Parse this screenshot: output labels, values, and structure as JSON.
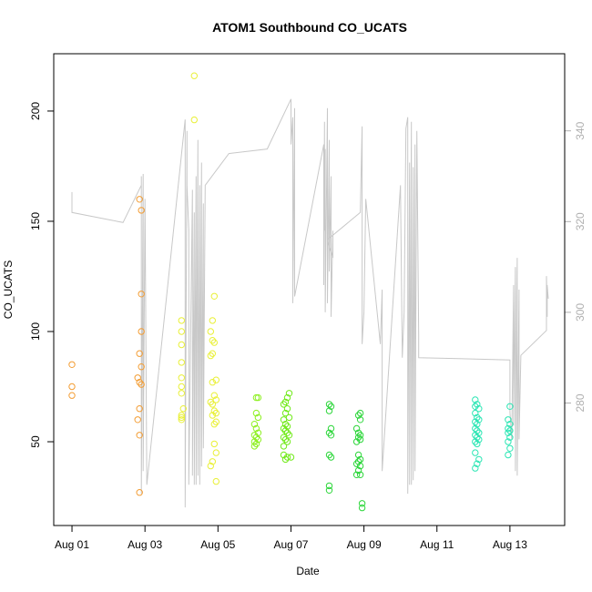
{
  "chart_data": {
    "type": "scatter",
    "title": "ATOM1 Southbound CO_UCATS",
    "xlabel": "Date",
    "ylabel": "CO_UCATS",
    "x_unit": "days since Aug 01",
    "xlim": [
      -0.5,
      13.5
    ],
    "ylim": [
      12,
      226
    ],
    "x_ticks": [
      {
        "value": 0,
        "label": "Aug 01"
      },
      {
        "value": 2,
        "label": "Aug 03"
      },
      {
        "value": 4,
        "label": "Aug 05"
      },
      {
        "value": 6,
        "label": "Aug 07"
      },
      {
        "value": 8,
        "label": "Aug 09"
      },
      {
        "value": 10,
        "label": "Aug 11"
      },
      {
        "value": 12,
        "label": "Aug 13"
      }
    ],
    "y_ticks": [
      {
        "value": 50,
        "label": "50"
      },
      {
        "value": 100,
        "label": "100"
      },
      {
        "value": 150,
        "label": "150"
      },
      {
        "value": 200,
        "label": "200"
      }
    ],
    "secondary_axis": {
      "description": "grey altitude trace (right axis)",
      "color": "#c8c8c8",
      "ylim": [
        253,
        357
      ],
      "ticks": [
        {
          "value": 280,
          "label": "280"
        },
        {
          "value": 300,
          "label": "300"
        },
        {
          "value": 320,
          "label": "320"
        },
        {
          "value": 340,
          "label": "340"
        }
      ],
      "line": [
        [
          0.0,
          326.5
        ],
        [
          0.0,
          322.0
        ],
        [
          1.4,
          319.8
        ],
        [
          1.9,
          328.0
        ],
        [
          1.9,
          330.0
        ],
        [
          1.9,
          260.0
        ],
        [
          1.95,
          330.5
        ],
        [
          1.95,
          265.0
        ],
        [
          2.0,
          325.0
        ],
        [
          2.05,
          262.0
        ],
        [
          3.1,
          342.5
        ],
        [
          3.1,
          257.0
        ],
        [
          3.15,
          340.0
        ],
        [
          3.15,
          328.0
        ],
        [
          3.2,
          318.0
        ],
        [
          3.2,
          262.0
        ],
        [
          3.3,
          327.0
        ],
        [
          3.3,
          264.0
        ],
        [
          3.35,
          322.0
        ],
        [
          3.35,
          262.0
        ],
        [
          3.4,
          330.0
        ],
        [
          3.4,
          262.0
        ],
        [
          3.45,
          338.0
        ],
        [
          3.45,
          264.0
        ],
        [
          3.5,
          328.0
        ],
        [
          3.5,
          262.0
        ],
        [
          3.55,
          333.0
        ],
        [
          3.55,
          266.0
        ],
        [
          3.6,
          324.0
        ],
        [
          3.6,
          270.0
        ],
        [
          3.65,
          328.0
        ],
        [
          4.3,
          335.0
        ],
        [
          5.35,
          336.0
        ],
        [
          6.0,
          347.0
        ],
        [
          6.0,
          337.0
        ],
        [
          6.05,
          343.0
        ],
        [
          6.05,
          302.0
        ],
        [
          6.1,
          345.0
        ],
        [
          6.1,
          303.5
        ],
        [
          6.9,
          337.0
        ],
        [
          6.9,
          306.0
        ],
        [
          6.92,
          342.0
        ],
        [
          6.92,
          318.0
        ],
        [
          6.94,
          336.0
        ],
        [
          6.94,
          300.0
        ],
        [
          7.0,
          345.0
        ],
        [
          7.0,
          302.0
        ],
        [
          7.05,
          338.0
        ],
        [
          7.05,
          309.0
        ],
        [
          7.1,
          330.0
        ],
        [
          7.1,
          299.0
        ],
        [
          7.15,
          318.0
        ],
        [
          7.15,
          312.0
        ],
        [
          7.0,
          316.0
        ],
        [
          7.9,
          322.0
        ],
        [
          7.95,
          341.0
        ],
        [
          7.95,
          293.0
        ],
        [
          8.0,
          300.0
        ],
        [
          8.05,
          325.0
        ],
        [
          8.45,
          293.0
        ],
        [
          8.5,
          305.0
        ],
        [
          8.5,
          265.0
        ],
        [
          9.0,
          328.0
        ],
        [
          9.05,
          290.0
        ],
        [
          9.1,
          300.0
        ],
        [
          9.15,
          340.5
        ],
        [
          9.2,
          343.0
        ],
        [
          9.2,
          260.0
        ],
        [
          9.25,
          333.0
        ],
        [
          9.25,
          262.0
        ],
        [
          9.3,
          342.0
        ],
        [
          9.3,
          262.0
        ],
        [
          9.35,
          332.0
        ],
        [
          9.35,
          263.0
        ],
        [
          9.4,
          337.0
        ],
        [
          9.4,
          265.0
        ],
        [
          9.45,
          340.0
        ],
        [
          9.5,
          295.0
        ],
        [
          9.5,
          290.0
        ],
        [
          12.0,
          289.5
        ],
        [
          12.0,
          278.0
        ],
        [
          12.05,
          272.0
        ],
        [
          12.1,
          306.0
        ],
        [
          12.1,
          275.0
        ],
        [
          12.15,
          310.0
        ],
        [
          12.15,
          265.0
        ],
        [
          12.2,
          312.0
        ],
        [
          12.2,
          264.0
        ],
        [
          12.25,
          305.0
        ],
        [
          12.25,
          272.0
        ],
        [
          12.3,
          290.5
        ],
        [
          13.0,
          296.0
        ],
        [
          13.0,
          308.0
        ],
        [
          13.02,
          299.0
        ],
        [
          13.02,
          306.0
        ],
        [
          13.05,
          303.0
        ]
      ]
    },
    "points": [
      {
        "x": 0.0,
        "y": 85,
        "color": "#f39c32"
      },
      {
        "x": 0.0,
        "y": 75,
        "color": "#f39c32"
      },
      {
        "x": 0.0,
        "y": 71,
        "color": "#f39c32"
      },
      {
        "x": 1.85,
        "y": 160,
        "color": "#f39c32"
      },
      {
        "x": 1.9,
        "y": 155,
        "color": "#f39c32"
      },
      {
        "x": 1.9,
        "y": 117,
        "color": "#f39c32"
      },
      {
        "x": 1.9,
        "y": 100,
        "color": "#f39c32"
      },
      {
        "x": 1.85,
        "y": 90,
        "color": "#f39c32"
      },
      {
        "x": 1.9,
        "y": 84,
        "color": "#f39c32"
      },
      {
        "x": 1.8,
        "y": 79,
        "color": "#f39c32"
      },
      {
        "x": 1.85,
        "y": 77,
        "color": "#f39c32"
      },
      {
        "x": 1.9,
        "y": 76,
        "color": "#f39c32"
      },
      {
        "x": 1.85,
        "y": 65,
        "color": "#f39c32"
      },
      {
        "x": 1.8,
        "y": 60,
        "color": "#f39c32"
      },
      {
        "x": 1.85,
        "y": 53,
        "color": "#f39c32"
      },
      {
        "x": 1.85,
        "y": 27,
        "color": "#f39c32"
      },
      {
        "x": 3.35,
        "y": 216,
        "color": "#e9f036"
      },
      {
        "x": 3.35,
        "y": 196,
        "color": "#e9f036"
      },
      {
        "x": 3.0,
        "y": 105,
        "color": "#e9f036"
      },
      {
        "x": 3.0,
        "y": 100,
        "color": "#e9f036"
      },
      {
        "x": 3.0,
        "y": 94,
        "color": "#e9f036"
      },
      {
        "x": 3.0,
        "y": 86,
        "color": "#e9f036"
      },
      {
        "x": 3.0,
        "y": 79,
        "color": "#e9f036"
      },
      {
        "x": 3.0,
        "y": 75,
        "color": "#e9f036"
      },
      {
        "x": 3.0,
        "y": 72,
        "color": "#e9f036"
      },
      {
        "x": 3.05,
        "y": 65,
        "color": "#e9f036"
      },
      {
        "x": 3.0,
        "y": 62,
        "color": "#e9f036"
      },
      {
        "x": 3.0,
        "y": 61,
        "color": "#e9f036"
      },
      {
        "x": 3.0,
        "y": 60,
        "color": "#e9f036"
      },
      {
        "x": 3.9,
        "y": 116,
        "color": "#e9f036"
      },
      {
        "x": 3.85,
        "y": 105,
        "color": "#e9f036"
      },
      {
        "x": 3.8,
        "y": 100,
        "color": "#e9f036"
      },
      {
        "x": 3.85,
        "y": 96,
        "color": "#e9f036"
      },
      {
        "x": 3.9,
        "y": 95,
        "color": "#e9f036"
      },
      {
        "x": 3.85,
        "y": 90,
        "color": "#e9f036"
      },
      {
        "x": 3.8,
        "y": 89,
        "color": "#e9f036"
      },
      {
        "x": 3.95,
        "y": 78,
        "color": "#e9f036"
      },
      {
        "x": 3.85,
        "y": 77,
        "color": "#e9f036"
      },
      {
        "x": 3.9,
        "y": 71,
        "color": "#e9f036"
      },
      {
        "x": 3.95,
        "y": 69,
        "color": "#e9f036"
      },
      {
        "x": 3.8,
        "y": 68,
        "color": "#e9f036"
      },
      {
        "x": 3.85,
        "y": 67,
        "color": "#e9f036"
      },
      {
        "x": 3.9,
        "y": 64,
        "color": "#e9f036"
      },
      {
        "x": 3.95,
        "y": 63,
        "color": "#e9f036"
      },
      {
        "x": 3.85,
        "y": 62,
        "color": "#e9f036"
      },
      {
        "x": 3.95,
        "y": 59,
        "color": "#e9f036"
      },
      {
        "x": 3.9,
        "y": 58,
        "color": "#e9f036"
      },
      {
        "x": 3.9,
        "y": 49,
        "color": "#e9f036"
      },
      {
        "x": 3.95,
        "y": 45,
        "color": "#e9f036"
      },
      {
        "x": 3.85,
        "y": 41,
        "color": "#e9f036"
      },
      {
        "x": 3.8,
        "y": 39,
        "color": "#e9f036"
      },
      {
        "x": 3.95,
        "y": 32,
        "color": "#e9f036"
      },
      {
        "x": 5.05,
        "y": 70,
        "color": "#8ef022"
      },
      {
        "x": 5.1,
        "y": 70,
        "color": "#8ef022"
      },
      {
        "x": 5.05,
        "y": 63,
        "color": "#8ef022"
      },
      {
        "x": 5.1,
        "y": 61,
        "color": "#8ef022"
      },
      {
        "x": 5.0,
        "y": 58,
        "color": "#8ef022"
      },
      {
        "x": 5.05,
        "y": 56,
        "color": "#8ef022"
      },
      {
        "x": 5.1,
        "y": 54,
        "color": "#8ef022"
      },
      {
        "x": 5.0,
        "y": 53,
        "color": "#8ef022"
      },
      {
        "x": 5.05,
        "y": 52,
        "color": "#8ef022"
      },
      {
        "x": 5.1,
        "y": 51,
        "color": "#8ef022"
      },
      {
        "x": 5.0,
        "y": 50,
        "color": "#8ef022"
      },
      {
        "x": 5.05,
        "y": 49,
        "color": "#8ef022"
      },
      {
        "x": 5.0,
        "y": 48,
        "color": "#8ef022"
      },
      {
        "x": 5.95,
        "y": 72,
        "color": "#71ea1a"
      },
      {
        "x": 5.9,
        "y": 70,
        "color": "#71ea1a"
      },
      {
        "x": 5.85,
        "y": 68,
        "color": "#71ea1a"
      },
      {
        "x": 5.8,
        "y": 67,
        "color": "#71ea1a"
      },
      {
        "x": 5.9,
        "y": 65,
        "color": "#71ea1a"
      },
      {
        "x": 5.85,
        "y": 63,
        "color": "#71ea1a"
      },
      {
        "x": 5.95,
        "y": 61,
        "color": "#71ea1a"
      },
      {
        "x": 5.8,
        "y": 60,
        "color": "#71ea1a"
      },
      {
        "x": 5.85,
        "y": 58,
        "color": "#71ea1a"
      },
      {
        "x": 5.9,
        "y": 57,
        "color": "#71ea1a"
      },
      {
        "x": 5.8,
        "y": 56,
        "color": "#71ea1a"
      },
      {
        "x": 5.85,
        "y": 55,
        "color": "#71ea1a"
      },
      {
        "x": 5.9,
        "y": 54,
        "color": "#71ea1a"
      },
      {
        "x": 5.95,
        "y": 53,
        "color": "#71ea1a"
      },
      {
        "x": 5.8,
        "y": 52,
        "color": "#71ea1a"
      },
      {
        "x": 5.85,
        "y": 51,
        "color": "#71ea1a"
      },
      {
        "x": 5.9,
        "y": 50,
        "color": "#71ea1a"
      },
      {
        "x": 5.8,
        "y": 48,
        "color": "#71ea1a"
      },
      {
        "x": 5.8,
        "y": 44,
        "color": "#71ea1a"
      },
      {
        "x": 5.9,
        "y": 43,
        "color": "#71ea1a"
      },
      {
        "x": 6.0,
        "y": 43,
        "color": "#71ea1a"
      },
      {
        "x": 5.85,
        "y": 42,
        "color": "#71ea1a"
      },
      {
        "x": 7.05,
        "y": 67,
        "color": "#2cd63a"
      },
      {
        "x": 7.1,
        "y": 66,
        "color": "#2cd63a"
      },
      {
        "x": 7.05,
        "y": 64,
        "color": "#2cd63a"
      },
      {
        "x": 7.1,
        "y": 56,
        "color": "#2cd63a"
      },
      {
        "x": 7.05,
        "y": 54,
        "color": "#2cd63a"
      },
      {
        "x": 7.1,
        "y": 53,
        "color": "#2cd63a"
      },
      {
        "x": 7.05,
        "y": 44,
        "color": "#2cd63a"
      },
      {
        "x": 7.1,
        "y": 43,
        "color": "#2cd63a"
      },
      {
        "x": 7.05,
        "y": 30,
        "color": "#2cd63a"
      },
      {
        "x": 7.05,
        "y": 28,
        "color": "#2cd63a"
      },
      {
        "x": 7.9,
        "y": 63,
        "color": "#2cd63a"
      },
      {
        "x": 7.85,
        "y": 62,
        "color": "#2cd63a"
      },
      {
        "x": 7.9,
        "y": 60,
        "color": "#2cd63a"
      },
      {
        "x": 7.8,
        "y": 56,
        "color": "#2cd63a"
      },
      {
        "x": 7.85,
        "y": 54,
        "color": "#2cd63a"
      },
      {
        "x": 7.9,
        "y": 53,
        "color": "#2cd63a"
      },
      {
        "x": 7.85,
        "y": 52,
        "color": "#2cd63a"
      },
      {
        "x": 7.9,
        "y": 51,
        "color": "#2cd63a"
      },
      {
        "x": 7.8,
        "y": 50,
        "color": "#2cd63a"
      },
      {
        "x": 7.85,
        "y": 44,
        "color": "#2cd63a"
      },
      {
        "x": 7.9,
        "y": 42,
        "color": "#2cd63a"
      },
      {
        "x": 7.85,
        "y": 41,
        "color": "#2cd63a"
      },
      {
        "x": 7.8,
        "y": 40,
        "color": "#2cd63a"
      },
      {
        "x": 7.9,
        "y": 39,
        "color": "#2cd63a"
      },
      {
        "x": 7.85,
        "y": 37,
        "color": "#2cd63a"
      },
      {
        "x": 7.8,
        "y": 35,
        "color": "#2cd63a"
      },
      {
        "x": 7.9,
        "y": 35,
        "color": "#2cd63a"
      },
      {
        "x": 7.95,
        "y": 22,
        "color": "#2cd63a"
      },
      {
        "x": 7.95,
        "y": 20,
        "color": "#2cd63a"
      },
      {
        "x": 11.05,
        "y": 69,
        "color": "#2ce6b4"
      },
      {
        "x": 11.1,
        "y": 67,
        "color": "#2ce6b4"
      },
      {
        "x": 11.05,
        "y": 66,
        "color": "#2ce6b4"
      },
      {
        "x": 11.15,
        "y": 65,
        "color": "#2ce6b4"
      },
      {
        "x": 11.05,
        "y": 63,
        "color": "#2ce6b4"
      },
      {
        "x": 11.1,
        "y": 61,
        "color": "#2ce6b4"
      },
      {
        "x": 11.15,
        "y": 60,
        "color": "#2ce6b4"
      },
      {
        "x": 11.05,
        "y": 59,
        "color": "#2ce6b4"
      },
      {
        "x": 11.1,
        "y": 58,
        "color": "#2ce6b4"
      },
      {
        "x": 11.05,
        "y": 56,
        "color": "#2ce6b4"
      },
      {
        "x": 11.1,
        "y": 55,
        "color": "#2ce6b4"
      },
      {
        "x": 11.15,
        "y": 54,
        "color": "#2ce6b4"
      },
      {
        "x": 11.05,
        "y": 53,
        "color": "#2ce6b4"
      },
      {
        "x": 11.1,
        "y": 52,
        "color": "#2ce6b4"
      },
      {
        "x": 11.15,
        "y": 51,
        "color": "#2ce6b4"
      },
      {
        "x": 11.05,
        "y": 50,
        "color": "#2ce6b4"
      },
      {
        "x": 11.1,
        "y": 49,
        "color": "#2ce6b4"
      },
      {
        "x": 11.05,
        "y": 45,
        "color": "#2ce6b4"
      },
      {
        "x": 11.15,
        "y": 42,
        "color": "#2ce6b4"
      },
      {
        "x": 11.1,
        "y": 40,
        "color": "#2ce6b4"
      },
      {
        "x": 11.05,
        "y": 38,
        "color": "#2ce6b4"
      },
      {
        "x": 12.0,
        "y": 66,
        "color": "#2ce6b4"
      },
      {
        "x": 11.95,
        "y": 60,
        "color": "#2ce6b4"
      },
      {
        "x": 12.0,
        "y": 58,
        "color": "#2ce6b4"
      },
      {
        "x": 11.95,
        "y": 56,
        "color": "#2ce6b4"
      },
      {
        "x": 12.0,
        "y": 55,
        "color": "#2ce6b4"
      },
      {
        "x": 11.95,
        "y": 54,
        "color": "#2ce6b4"
      },
      {
        "x": 12.0,
        "y": 52,
        "color": "#2ce6b4"
      },
      {
        "x": 11.95,
        "y": 50,
        "color": "#2ce6b4"
      },
      {
        "x": 12.0,
        "y": 47,
        "color": "#2ce6b4"
      },
      {
        "x": 11.95,
        "y": 44,
        "color": "#2ce6b4"
      }
    ]
  }
}
